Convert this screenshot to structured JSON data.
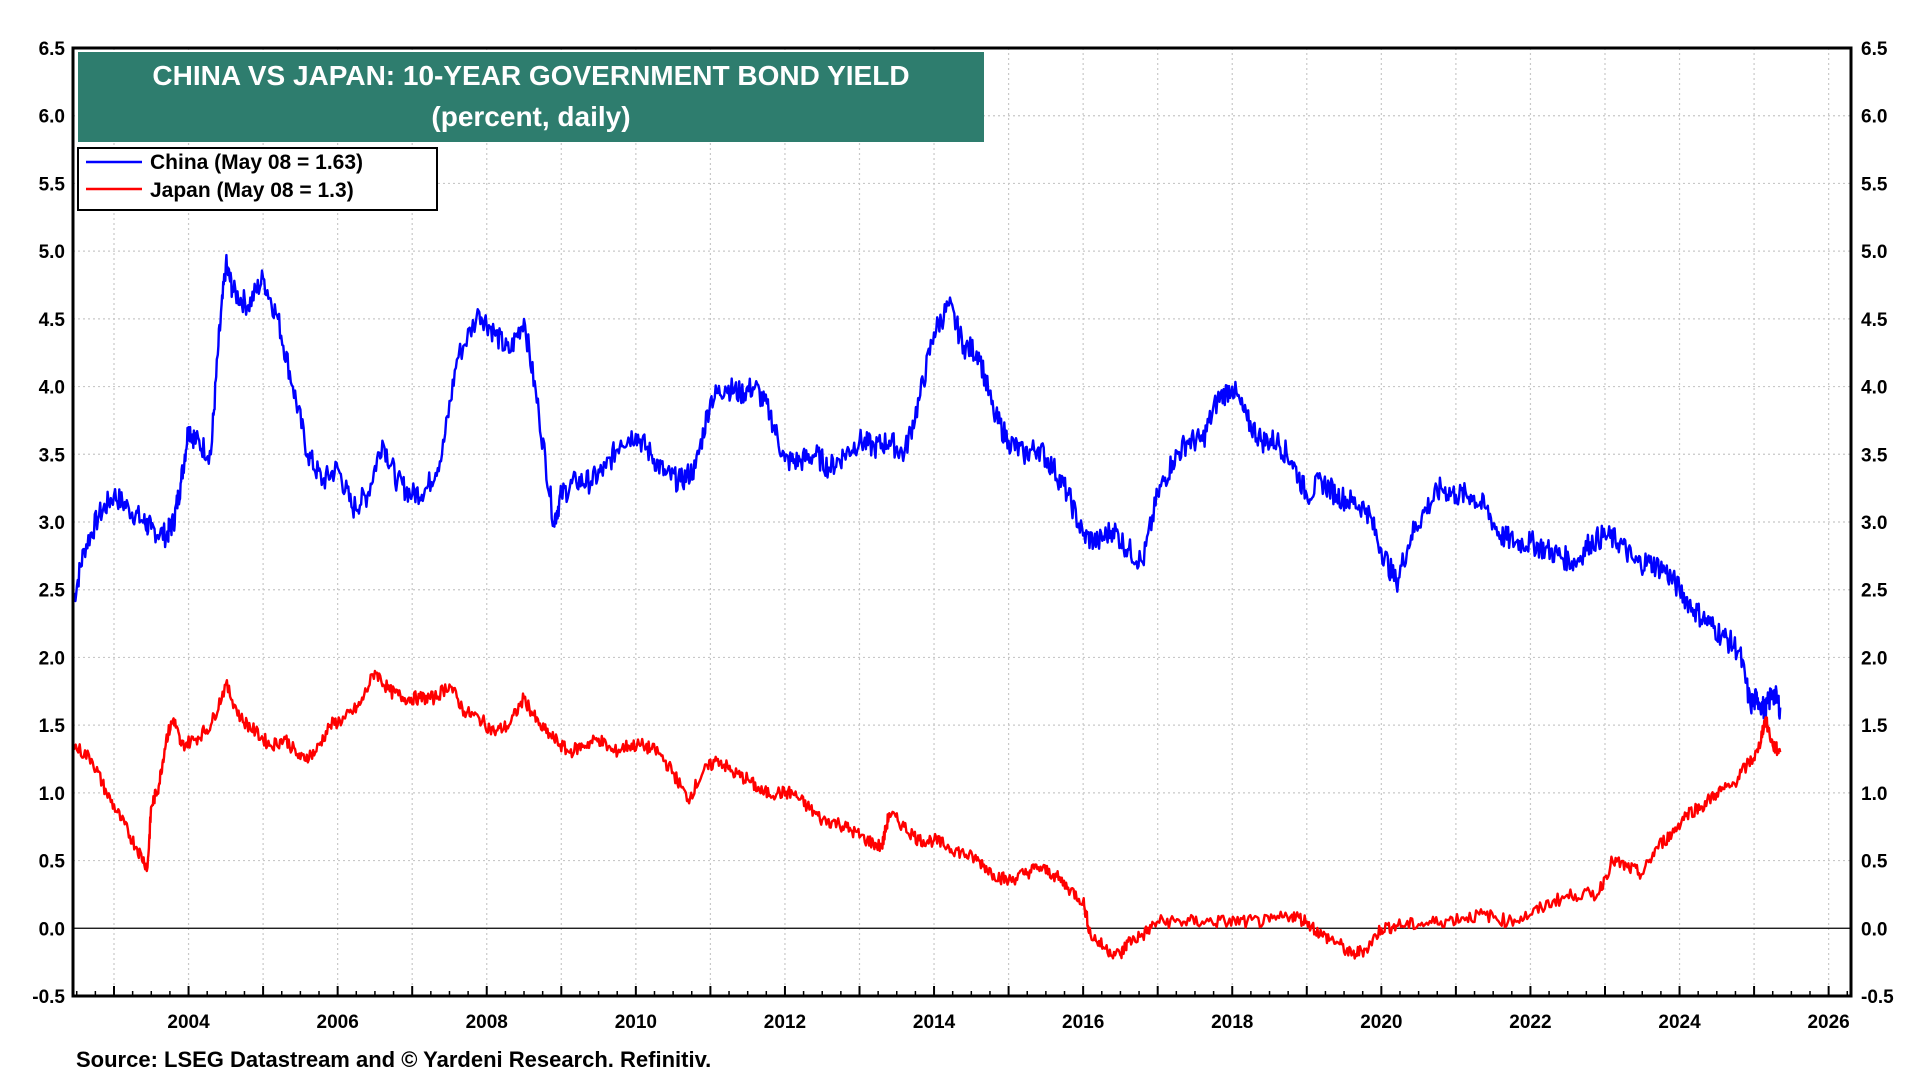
{
  "chart_data": {
    "type": "line",
    "title": "CHINA VS JAPAN: 10-YEAR GOVERNMENT BOND YIELD",
    "subtitle": "(percent, daily)",
    "xlabel": "",
    "ylabel": "",
    "xlim": [
      2002.45,
      2026.3
    ],
    "ylim": [
      -0.5,
      6.5
    ],
    "x_ticks": [
      2004,
      2006,
      2008,
      2010,
      2012,
      2014,
      2016,
      2018,
      2020,
      2022,
      2024,
      2026
    ],
    "x_tick_labels": [
      "2004",
      "2006",
      "2008",
      "2010",
      "2012",
      "2014",
      "2016",
      "2018",
      "2020",
      "2022",
      "2024",
      "2026"
    ],
    "y_ticks": [
      -0.5,
      0.0,
      0.5,
      1.0,
      1.5,
      2.0,
      2.5,
      3.0,
      3.5,
      4.0,
      4.5,
      5.0,
      5.5,
      6.0,
      6.5
    ],
    "y_tick_labels": [
      "-0.5",
      "0.0",
      "0.5",
      "1.0",
      "1.5",
      "2.0",
      "2.5",
      "3.0",
      "3.5",
      "4.0",
      "4.5",
      "5.0",
      "5.5",
      "6.0",
      "6.5"
    ],
    "grid": true,
    "zero_line": true,
    "legend_position": "top-left",
    "series": [
      {
        "name": "China (May 08 = 1.63)",
        "color": "#0000ff",
        "x": [
          2002.45,
          2002.6,
          2002.8,
          2003.0,
          2003.2,
          2003.4,
          2003.5,
          2003.7,
          2003.8,
          2003.9,
          2004.0,
          2004.1,
          2004.3,
          2004.4,
          2004.5,
          2004.6,
          2004.8,
          2005.0,
          2005.2,
          2005.4,
          2005.6,
          2005.8,
          2006.0,
          2006.2,
          2006.4,
          2006.6,
          2006.8,
          2007.0,
          2007.2,
          2007.4,
          2007.6,
          2007.9,
          2008.1,
          2008.3,
          2008.5,
          2008.7,
          2008.9,
          2009.0,
          2009.2,
          2009.4,
          2009.6,
          2009.8,
          2010.0,
          2010.2,
          2010.4,
          2010.6,
          2010.8,
          2011.0,
          2011.2,
          2011.4,
          2011.6,
          2011.8,
          2012.0,
          2012.2,
          2012.4,
          2012.6,
          2012.8,
          2013.0,
          2013.2,
          2013.4,
          2013.6,
          2013.8,
          2014.0,
          2014.2,
          2014.4,
          2014.6,
          2014.8,
          2015.0,
          2015.2,
          2015.4,
          2015.6,
          2015.8,
          2016.0,
          2016.2,
          2016.4,
          2016.6,
          2016.8,
          2017.0,
          2017.2,
          2017.4,
          2017.6,
          2017.8,
          2018.0,
          2018.2,
          2018.4,
          2018.6,
          2018.8,
          2019.0,
          2019.2,
          2019.4,
          2019.6,
          2019.8,
          2020.0,
          2020.2,
          2020.4,
          2020.6,
          2020.8,
          2021.0,
          2021.2,
          2021.4,
          2021.6,
          2021.8,
          2022.0,
          2022.2,
          2022.4,
          2022.6,
          2022.8,
          2023.0,
          2023.2,
          2023.4,
          2023.6,
          2023.8,
          2024.0,
          2024.2,
          2024.4,
          2024.6,
          2024.8,
          2024.95,
          2025.05,
          2025.15,
          2025.25,
          2025.35
        ],
        "values": [
          2.4,
          2.8,
          3.05,
          3.2,
          3.1,
          3.0,
          2.95,
          2.9,
          3.0,
          3.3,
          3.7,
          3.6,
          3.5,
          4.3,
          4.9,
          4.7,
          4.6,
          4.8,
          4.5,
          4.0,
          3.5,
          3.3,
          3.4,
          3.1,
          3.2,
          3.6,
          3.3,
          3.2,
          3.25,
          3.5,
          4.2,
          4.55,
          4.4,
          4.25,
          4.5,
          3.8,
          3.0,
          3.2,
          3.3,
          3.3,
          3.4,
          3.6,
          3.65,
          3.5,
          3.35,
          3.3,
          3.4,
          3.9,
          4.0,
          3.95,
          4.0,
          3.8,
          3.45,
          3.45,
          3.5,
          3.4,
          3.5,
          3.6,
          3.55,
          3.6,
          3.5,
          3.9,
          4.4,
          4.6,
          4.3,
          4.25,
          3.8,
          3.6,
          3.5,
          3.55,
          3.4,
          3.2,
          2.9,
          2.85,
          2.95,
          2.8,
          2.7,
          3.2,
          3.45,
          3.6,
          3.6,
          3.9,
          4.0,
          3.75,
          3.6,
          3.6,
          3.45,
          3.2,
          3.3,
          3.2,
          3.15,
          3.1,
          2.8,
          2.55,
          2.9,
          3.1,
          3.25,
          3.2,
          3.2,
          3.1,
          2.9,
          2.85,
          2.85,
          2.8,
          2.75,
          2.7,
          2.85,
          2.9,
          2.85,
          2.7,
          2.7,
          2.65,
          2.5,
          2.35,
          2.25,
          2.15,
          2.05,
          1.65,
          1.7,
          1.6,
          1.75,
          1.63
        ]
      },
      {
        "name": "Japan (May 08 = 1.3)",
        "color": "#ff0000",
        "x": [
          2002.45,
          2002.7,
          2002.9,
          2003.1,
          2003.3,
          2003.45,
          2003.5,
          2003.6,
          2003.7,
          2003.8,
          2003.9,
          2004.1,
          2004.3,
          2004.5,
          2004.7,
          2004.9,
          2005.1,
          2005.3,
          2005.5,
          2005.7,
          2005.9,
          2006.1,
          2006.3,
          2006.5,
          2006.7,
          2006.9,
          2007.1,
          2007.3,
          2007.5,
          2007.7,
          2007.9,
          2008.1,
          2008.3,
          2008.5,
          2008.7,
          2008.9,
          2009.1,
          2009.3,
          2009.5,
          2009.7,
          2009.9,
          2010.1,
          2010.3,
          2010.5,
          2010.7,
          2010.9,
          2011.1,
          2011.3,
          2011.5,
          2011.7,
          2011.9,
          2012.1,
          2012.3,
          2012.5,
          2012.7,
          2012.9,
          2013.1,
          2013.3,
          2013.4,
          2013.6,
          2013.8,
          2014.0,
          2014.2,
          2014.4,
          2014.6,
          2014.8,
          2015.0,
          2015.2,
          2015.4,
          2015.6,
          2015.8,
          2016.0,
          2016.1,
          2016.3,
          2016.5,
          2016.6,
          2016.8,
          2017.0,
          2017.3,
          2017.6,
          2017.9,
          2018.2,
          2018.5,
          2018.8,
          2019.0,
          2019.2,
          2019.4,
          2019.6,
          2019.8,
          2020.0,
          2020.2,
          2020.5,
          2020.8,
          2021.1,
          2021.4,
          2021.7,
          2022.0,
          2022.3,
          2022.6,
          2022.9,
          2023.1,
          2023.3,
          2023.5,
          2023.7,
          2023.9,
          2024.1,
          2024.3,
          2024.5,
          2024.7,
          2024.9,
          2025.05,
          2025.15,
          2025.25,
          2025.35
        ],
        "values": [
          1.35,
          1.25,
          1.0,
          0.8,
          0.6,
          0.45,
          0.9,
          1.05,
          1.4,
          1.55,
          1.35,
          1.4,
          1.5,
          1.8,
          1.55,
          1.45,
          1.35,
          1.4,
          1.25,
          1.3,
          1.5,
          1.55,
          1.65,
          1.9,
          1.75,
          1.7,
          1.7,
          1.7,
          1.8,
          1.6,
          1.55,
          1.45,
          1.5,
          1.7,
          1.5,
          1.4,
          1.3,
          1.35,
          1.4,
          1.3,
          1.35,
          1.35,
          1.3,
          1.15,
          0.95,
          1.15,
          1.25,
          1.15,
          1.1,
          1.0,
          1.0,
          1.0,
          0.9,
          0.8,
          0.78,
          0.72,
          0.65,
          0.6,
          0.85,
          0.75,
          0.65,
          0.65,
          0.6,
          0.55,
          0.5,
          0.4,
          0.35,
          0.4,
          0.45,
          0.4,
          0.3,
          0.2,
          -0.05,
          -0.15,
          -0.2,
          -0.1,
          -0.05,
          0.05,
          0.05,
          0.05,
          0.05,
          0.05,
          0.05,
          0.1,
          0.05,
          -0.05,
          -0.1,
          -0.2,
          -0.15,
          0.0,
          0.02,
          0.03,
          0.05,
          0.08,
          0.1,
          0.05,
          0.1,
          0.2,
          0.25,
          0.25,
          0.5,
          0.45,
          0.4,
          0.6,
          0.7,
          0.85,
          0.9,
          1.0,
          1.05,
          1.2,
          1.3,
          1.55,
          1.35,
          1.3
        ]
      }
    ],
    "source": "Source: LSEG Datastream and © Yardeni Research. Refinitiv."
  }
}
